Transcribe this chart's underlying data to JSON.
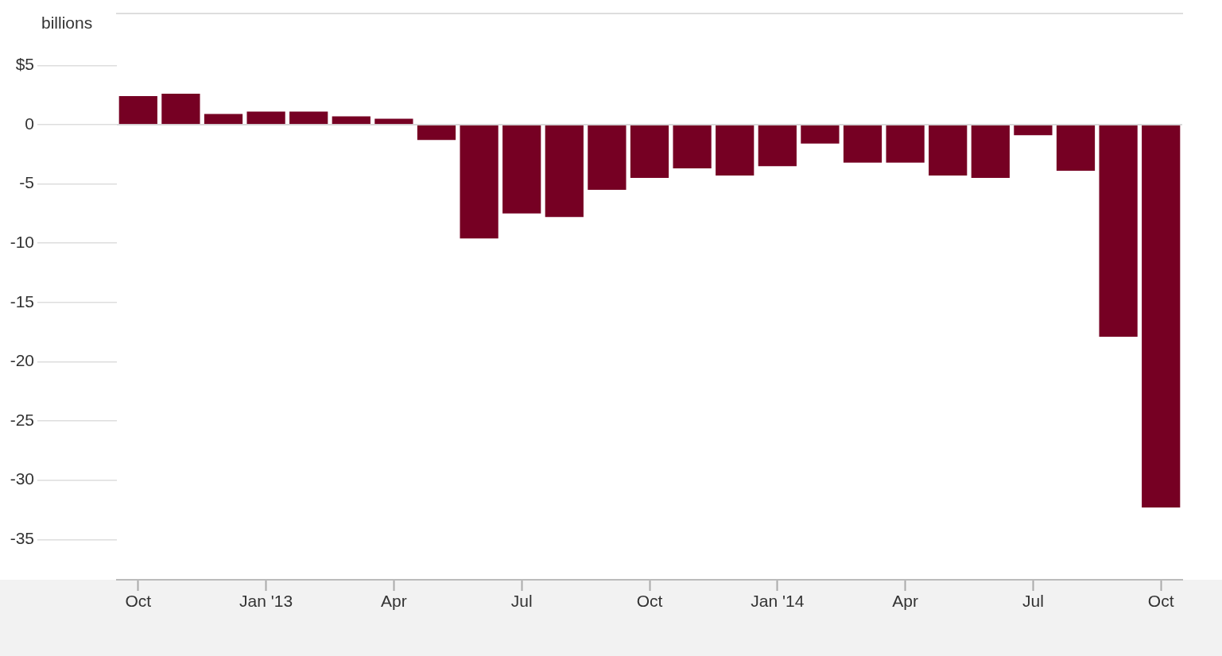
{
  "chart_data": {
    "type": "bar",
    "ylabel": "billions",
    "categories": [
      "Oct",
      null,
      null,
      "Jan '13",
      null,
      null,
      "Apr",
      null,
      null,
      "Jul",
      null,
      null,
      "Oct",
      null,
      null,
      "Jan '14",
      null,
      null,
      "Apr",
      null,
      null,
      "Jul",
      null,
      null,
      "Oct"
    ],
    "values": [
      2.4,
      2.6,
      0.9,
      1.1,
      1.1,
      0.7,
      0.5,
      -1.3,
      -9.6,
      -7.5,
      -7.8,
      -5.5,
      -4.5,
      -3.7,
      -4.3,
      -3.5,
      -1.6,
      -3.2,
      -3.2,
      -4.3,
      -4.5,
      -0.9,
      -3.9,
      -17.9,
      -32.3
    ],
    "color": "#760023",
    "ylim": [
      -38.4,
      9.4
    ],
    "yticks": [
      {
        "value": 5,
        "label": "$5"
      },
      0,
      -5,
      -10,
      -15,
      -20,
      -25,
      -30,
      -35
    ],
    "ref_lines": [
      {
        "axis": "y",
        "value": 0,
        "color": "#cccccc"
      }
    ],
    "legend": false
  }
}
